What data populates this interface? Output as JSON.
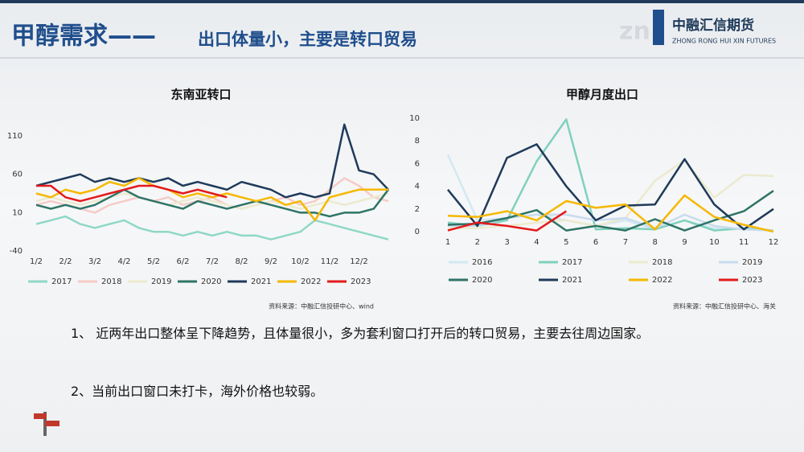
{
  "header": {
    "title_main": "甲醇需求——",
    "title_sub": "出口体量小，主要是转口贸易",
    "logo_cn": "中融汇信期货",
    "logo_en": "ZHONG RONG HUI XIN FUTURES"
  },
  "chart_data": [
    {
      "type": "line",
      "title": "东南亚转口",
      "source": "资料来源：中融汇信投研中心、wind",
      "categories": [
        "1/2",
        null,
        "2/2",
        null,
        "3/2",
        null,
        "4/2",
        null,
        "5/2",
        null,
        "6/2",
        null,
        "7/2",
        null,
        "8/2",
        null,
        "9/2",
        null,
        "10/2",
        null,
        "11/2",
        null,
        "12/2",
        null,
        null
      ],
      "ylim": [
        -40,
        130
      ],
      "yticks": [
        -40,
        10,
        60,
        110
      ],
      "grid": false,
      "series": [
        {
          "name": "2017",
          "color": "#8fd8c6",
          "values": [
            -5,
            0,
            5,
            -5,
            -10,
            -5,
            0,
            -10,
            -15,
            -15,
            -20,
            -15,
            -20,
            -15,
            -20,
            -20,
            -25,
            -20,
            -15,
            0,
            -5,
            -10,
            -15,
            -20,
            -25
          ]
        },
        {
          "name": "2018",
          "color": "#f6cbc7",
          "values": [
            20,
            25,
            20,
            15,
            10,
            20,
            25,
            30,
            25,
            30,
            20,
            25,
            30,
            20,
            15,
            20,
            25,
            30,
            20,
            25,
            40,
            55,
            45,
            30,
            25
          ]
        },
        {
          "name": "2019",
          "color": "#eceacf",
          "values": [
            25,
            30,
            25,
            20,
            25,
            30,
            35,
            30,
            25,
            20,
            25,
            30,
            25,
            20,
            15,
            20,
            25,
            20,
            15,
            20,
            25,
            20,
            25,
            30,
            35
          ]
        },
        {
          "name": "2020",
          "color": "#2e7466",
          "values": [
            20,
            15,
            20,
            15,
            20,
            30,
            40,
            30,
            25,
            20,
            15,
            25,
            20,
            15,
            20,
            25,
            20,
            15,
            10,
            10,
            5,
            10,
            10,
            15,
            40
          ]
        },
        {
          "name": "2021",
          "color": "#1f3a5a",
          "values": [
            45,
            50,
            55,
            60,
            50,
            55,
            50,
            55,
            50,
            55,
            45,
            50,
            45,
            40,
            50,
            45,
            40,
            30,
            35,
            30,
            35,
            125,
            65,
            60,
            40
          ]
        },
        {
          "name": "2022",
          "color": "#f5b800",
          "values": [
            35,
            30,
            40,
            35,
            40,
            50,
            45,
            55,
            45,
            40,
            30,
            35,
            30,
            35,
            30,
            25,
            30,
            20,
            25,
            0,
            30,
            35,
            40,
            40,
            40
          ]
        },
        {
          "name": "2023",
          "color": "#e31a1c",
          "values": [
            45,
            45,
            30,
            25,
            30,
            35,
            40,
            45,
            45,
            40,
            35,
            40,
            35,
            30,
            null,
            null,
            null,
            null,
            null,
            null,
            null,
            null,
            null,
            null,
            null
          ]
        }
      ]
    },
    {
      "type": "line",
      "title": "甲醇月度出口",
      "source": "资料来源：中融汇信投研中心、海关",
      "x": [
        1,
        2,
        3,
        4,
        5,
        6,
        7,
        8,
        9,
        10,
        11,
        12
      ],
      "xlim": [
        1,
        12
      ],
      "ylim": [
        0,
        10
      ],
      "yticks": [
        0,
        2,
        4,
        6,
        8,
        10
      ],
      "grid": false,
      "series": [
        {
          "name": "2016",
          "color": "#d3e8f2",
          "values": [
            6.8,
            1.0,
            1.2,
            1.5,
            1.0,
            0.5,
            1.0,
            0.2,
            1.0,
            0.3,
            0.2,
            0.1
          ]
        },
        {
          "name": "2017",
          "color": "#7fd1bd",
          "values": [
            0.8,
            0.5,
            1.0,
            6.2,
            9.9,
            0.2,
            0.3,
            0.2,
            1.0,
            0.1,
            0.3,
            0.1
          ]
        },
        {
          "name": "2018",
          "color": "#eceacf",
          "values": [
            0.3,
            0.3,
            0.5,
            0.8,
            1.0,
            0.5,
            1.2,
            4.5,
            6.3,
            3.0,
            5.0,
            4.9
          ]
        },
        {
          "name": "2019",
          "color": "#c9dcee",
          "values": [
            0.5,
            0.5,
            1.2,
            1.5,
            1.5,
            1.0,
            1.2,
            0.3,
            1.5,
            0.5,
            0.2,
            0.1
          ]
        },
        {
          "name": "2020",
          "color": "#2e7466",
          "values": [
            0.6,
            0.7,
            1.2,
            1.9,
            0.1,
            0.5,
            0.1,
            1.1,
            0.1,
            1.0,
            1.8,
            3.6
          ]
        },
        {
          "name": "2021",
          "color": "#1f3a5a",
          "values": [
            3.7,
            0.5,
            6.5,
            7.7,
            4.0,
            1.0,
            2.3,
            2.4,
            6.4,
            2.4,
            0.2,
            2.0
          ]
        },
        {
          "name": "2022",
          "color": "#f5b800",
          "values": [
            1.4,
            1.3,
            1.8,
            1.0,
            2.7,
            2.1,
            2.4,
            0.2,
            3.2,
            1.3,
            0.6,
            0.0
          ]
        },
        {
          "name": "2023",
          "color": "#e31a1c",
          "values": [
            0.1,
            0.8,
            0.5,
            0.1,
            1.8,
            null,
            null,
            null,
            null,
            null,
            null,
            null
          ]
        }
      ]
    }
  ],
  "notes": [
    "1、 近两年出口整体呈下降趋势，且体量很小，多为套利窗口打开后的转口贸易，主要去往周边国家。",
    "2、当前出口窗口未打卡，海外价格也较弱。"
  ]
}
